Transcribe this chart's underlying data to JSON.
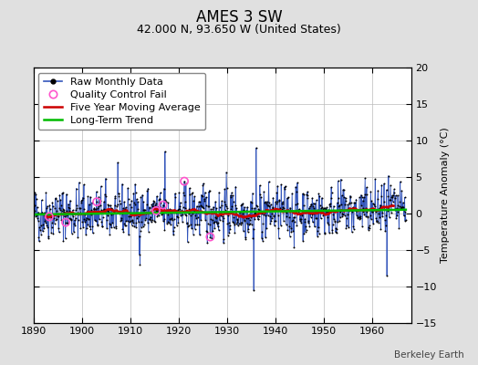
{
  "title": "AMES 3 SW",
  "subtitle": "42.000 N, 93.650 W (United States)",
  "ylabel": "Temperature Anomaly (°C)",
  "watermark": "Berkeley Earth",
  "xlim": [
    1890,
    1968
  ],
  "ylim": [
    -15,
    20
  ],
  "yticks": [
    -15,
    -10,
    -5,
    0,
    5,
    10,
    15,
    20
  ],
  "xticks": [
    1890,
    1900,
    1910,
    1920,
    1930,
    1940,
    1950,
    1960
  ],
  "start_year": 1890,
  "end_year": 1966,
  "seed": 42,
  "bg_color": "#e0e0e0",
  "plot_bg_color": "#ffffff",
  "raw_line_color": "#3355bb",
  "raw_dot_color": "#000000",
  "moving_avg_color": "#cc0000",
  "trend_color": "#00bb00",
  "qc_fail_color": "#ff55cc",
  "grid_color": "#bbbbbb",
  "title_fontsize": 12,
  "subtitle_fontsize": 9,
  "ylabel_fontsize": 8,
  "tick_fontsize": 8,
  "legend_fontsize": 8,
  "watermark_fontsize": 7.5
}
